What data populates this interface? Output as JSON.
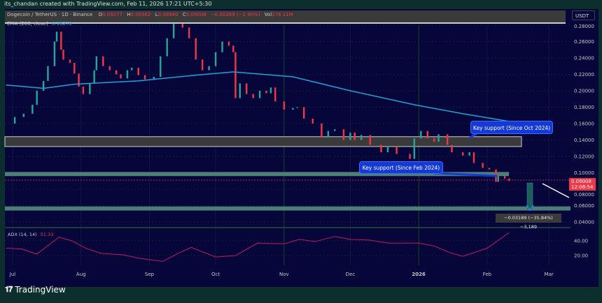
{
  "credit": "its_chandan created with TradingView.com, Feb 11, 2026 17:21 UTC+5:30",
  "legend": {
    "symbol": "Dogecoin / TetherUS · 1D · Binance",
    "o_label": "O",
    "o": "0.09277",
    "h_label": "H",
    "h": "0.09362",
    "l_label": "L",
    "l": "0.08940",
    "c_label": "C",
    "c": "0.09008",
    "change": "−0.00269 (−2.90%)",
    "vol_label": "Vol",
    "vol": "276.11M",
    "ema_label": "EMA (200, close)",
    "ema_value": "0.16270"
  },
  "currency": "USDT",
  "last_price": {
    "value": "0.09008",
    "countdown": "12:08:54"
  },
  "annotations": {
    "callout_oct": "Key support (Since Oct 2024)",
    "callout_feb": "Key support (Since Feb 2024)",
    "measure": "−0.03189 (−35.84%) −3,189"
  },
  "adx": {
    "label": "ADX (14, 14)",
    "value": "51.33"
  },
  "brand": "TradingView",
  "colors": {
    "up": "#26a69a",
    "down": "#f23645",
    "ema": "#1fa3d6",
    "adx": "#c2185b",
    "callout": "#1439d6",
    "zone_gray": "#3a3a3a",
    "zone_teal": "#4d7f78"
  },
  "chart_data": [
    {
      "type": "candlestick",
      "title": "Dogecoin / TetherUS · 1D · Binance",
      "ylim": [
        0.03,
        0.29
      ],
      "yticks": [
        "0.28000",
        "0.26000",
        "0.24000",
        "0.22000",
        "0.20000",
        "0.18000",
        "0.16000",
        "0.14000",
        "0.12000",
        "0.10000",
        "0.08000",
        "0.06000",
        "0.04000"
      ],
      "xticks": [
        "Jul",
        "Aug",
        "Sep",
        "Oct",
        "Nov",
        "Dec",
        "2026",
        "Feb",
        "Mar"
      ],
      "closes": [
        [
          "2025-06-28",
          0.16
        ],
        [
          "2025-07-02",
          0.168
        ],
        [
          "2025-07-06",
          0.172
        ],
        [
          "2025-07-10",
          0.183
        ],
        [
          "2025-07-12",
          0.2
        ],
        [
          "2025-07-15",
          0.212
        ],
        [
          "2025-07-17",
          0.23
        ],
        [
          "2025-07-20",
          0.26
        ],
        [
          "2025-07-21",
          0.272
        ],
        [
          "2025-07-23",
          0.25
        ],
        [
          "2025-07-24",
          0.238
        ],
        [
          "2025-07-27",
          0.234
        ],
        [
          "2025-07-29",
          0.221
        ],
        [
          "2025-07-31",
          0.205
        ],
        [
          "2025-08-02",
          0.196
        ],
        [
          "2025-08-05",
          0.209
        ],
        [
          "2025-08-07",
          0.225
        ],
        [
          "2025-08-08",
          0.242
        ],
        [
          "2025-08-11",
          0.23
        ],
        [
          "2025-08-14",
          0.225
        ],
        [
          "2025-08-17",
          0.22
        ],
        [
          "2025-08-19",
          0.215
        ],
        [
          "2025-08-22",
          0.225
        ],
        [
          "2025-08-24",
          0.228
        ],
        [
          "2025-08-27",
          0.219
        ],
        [
          "2025-08-30",
          0.214
        ],
        [
          "2025-09-03",
          0.217
        ],
        [
          "2025-09-06",
          0.242
        ],
        [
          "2025-09-09",
          0.264
        ],
        [
          "2025-09-12",
          0.289
        ],
        [
          "2025-09-14",
          0.282
        ],
        [
          "2025-09-16",
          0.277
        ],
        [
          "2025-09-19",
          0.264
        ],
        [
          "2025-09-22",
          0.238
        ],
        [
          "2025-09-25",
          0.225
        ],
        [
          "2025-09-28",
          0.23
        ],
        [
          "2025-10-01",
          0.247
        ],
        [
          "2025-10-04",
          0.26
        ],
        [
          "2025-10-07",
          0.255
        ],
        [
          "2025-10-09",
          0.247
        ],
        [
          "2025-10-10",
          0.191
        ],
        [
          "2025-10-12",
          0.209
        ],
        [
          "2025-10-15",
          0.196
        ],
        [
          "2025-10-18",
          0.191
        ],
        [
          "2025-10-21",
          0.2
        ],
        [
          "2025-10-24",
          0.197
        ],
        [
          "2025-10-26",
          0.204
        ],
        [
          "2025-10-28",
          0.187
        ],
        [
          "2025-11-01",
          0.177
        ],
        [
          "2025-11-05",
          0.179
        ],
        [
          "2025-11-07",
          0.18
        ],
        [
          "2025-11-10",
          0.166
        ],
        [
          "2025-11-14",
          0.16
        ],
        [
          "2025-11-18",
          0.143
        ],
        [
          "2025-11-21",
          0.151
        ],
        [
          "2025-11-24",
          0.153
        ],
        [
          "2025-11-28",
          0.14
        ],
        [
          "2025-12-01",
          0.149
        ],
        [
          "2025-12-03",
          0.14
        ],
        [
          "2025-12-06",
          0.146
        ],
        [
          "2025-12-10",
          0.134
        ],
        [
          "2025-12-15",
          0.125
        ],
        [
          "2025-12-18",
          0.132
        ],
        [
          "2025-12-22",
          0.123
        ],
        [
          "2025-12-28",
          0.117
        ],
        [
          "2025-12-30",
          0.142
        ],
        [
          "2026-01-02",
          0.151
        ],
        [
          "2026-01-05",
          0.142
        ],
        [
          "2026-01-08",
          0.138
        ],
        [
          "2026-01-10",
          0.147
        ],
        [
          "2026-01-14",
          0.134
        ],
        [
          "2026-01-16",
          0.125
        ],
        [
          "2026-01-21",
          0.121
        ],
        [
          "2026-01-24",
          0.125
        ],
        [
          "2026-01-26",
          0.112
        ],
        [
          "2026-01-30",
          0.106
        ],
        [
          "2026-02-02",
          0.104
        ],
        [
          "2026-02-05",
          0.089
        ],
        [
          "2026-02-06",
          0.096
        ],
        [
          "2026-02-09",
          0.093
        ],
        [
          "2026-02-11",
          0.09008
        ]
      ],
      "ema200": [
        [
          "2025-06-28",
          0.207
        ],
        [
          "2025-07-15",
          0.203
        ],
        [
          "2025-07-29",
          0.208
        ],
        [
          "2025-08-27",
          0.212
        ],
        [
          "2025-09-22",
          0.219
        ],
        [
          "2025-10-09",
          0.223
        ],
        [
          "2025-11-05",
          0.217
        ],
        [
          "2025-12-01",
          0.2
        ],
        [
          "2025-12-30",
          0.183
        ],
        [
          "2026-01-21",
          0.172
        ],
        [
          "2026-02-11",
          0.1627
        ]
      ],
      "zones": [
        {
          "from": 0.132,
          "to": 0.144,
          "style": "gray"
        },
        {
          "from": 0.096,
          "to": 0.101,
          "style": "teal"
        },
        {
          "from": 0.054,
          "to": 0.059,
          "style": "teal"
        }
      ]
    },
    {
      "type": "line",
      "title": "ADX (14, 14)",
      "ylim": [
        5,
        55
      ],
      "yticks": [
        "40.00",
        "20.00"
      ],
      "points": [
        [
          "2025-06-28",
          30
        ],
        [
          "2025-07-05",
          29
        ],
        [
          "2025-07-12",
          22
        ],
        [
          "2025-07-22",
          45
        ],
        [
          "2025-07-28",
          40
        ],
        [
          "2025-08-03",
          30
        ],
        [
          "2025-08-10",
          23
        ],
        [
          "2025-08-20",
          21
        ],
        [
          "2025-08-28",
          16
        ],
        [
          "2025-09-07",
          12
        ],
        [
          "2025-09-14",
          23
        ],
        [
          "2025-09-20",
          31
        ],
        [
          "2025-10-01",
          18
        ],
        [
          "2025-10-10",
          20
        ],
        [
          "2025-10-20",
          37
        ],
        [
          "2025-11-01",
          36
        ],
        [
          "2025-11-08",
          42
        ],
        [
          "2025-11-15",
          39
        ],
        [
          "2025-11-24",
          46
        ],
        [
          "2025-12-01",
          42
        ],
        [
          "2025-12-10",
          41
        ],
        [
          "2025-12-18",
          37
        ],
        [
          "2026-01-01",
          37
        ],
        [
          "2026-01-08",
          33
        ],
        [
          "2026-01-15",
          24
        ],
        [
          "2026-01-21",
          19
        ],
        [
          "2026-02-01",
          30
        ],
        [
          "2026-02-11",
          51.33
        ]
      ]
    }
  ]
}
